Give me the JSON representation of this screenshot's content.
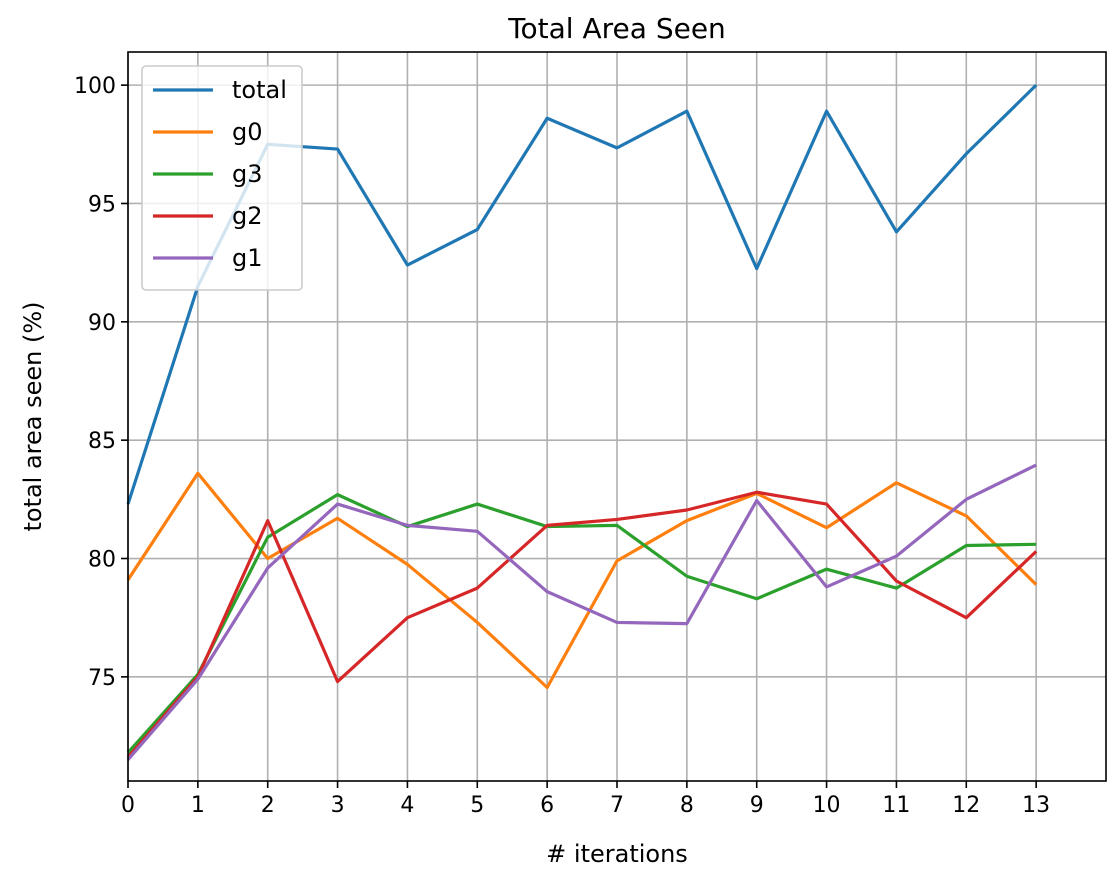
{
  "chart_data": {
    "type": "line",
    "title": "Total Area Seen",
    "xlabel": "# iterations",
    "ylabel": "total area seen (%)",
    "x": [
      0,
      1,
      2,
      3,
      4,
      5,
      6,
      7,
      8,
      9,
      10,
      11,
      12,
      13
    ],
    "xlim": [
      0,
      14
    ],
    "ylim": [
      70.6,
      101.4
    ],
    "xticks": [
      "0",
      "1",
      "2",
      "3",
      "4",
      "5",
      "6",
      "7",
      "8",
      "9",
      "10",
      "11",
      "12",
      "13"
    ],
    "yticks": [
      "75",
      "80",
      "85",
      "90",
      "95",
      "100"
    ],
    "grid": true,
    "legend_location": "upper left",
    "series": [
      {
        "name": "total",
        "color": "#1f77b4",
        "values": [
          82.3,
          91.5,
          97.5,
          97.3,
          92.4,
          93.9,
          98.6,
          97.35,
          98.9,
          92.25,
          98.9,
          93.8,
          97.1,
          100.0
        ]
      },
      {
        "name": "g0",
        "color": "#ff7f0e",
        "values": [
          79.1,
          83.6,
          80.0,
          81.7,
          79.75,
          77.3,
          74.55,
          79.9,
          81.6,
          82.75,
          81.3,
          83.2,
          81.8,
          78.9
        ]
      },
      {
        "name": "g3",
        "color": "#2ca02c",
        "values": [
          71.8,
          75.1,
          80.9,
          82.7,
          81.35,
          82.3,
          81.35,
          81.4,
          79.25,
          78.3,
          79.55,
          78.75,
          80.55,
          80.6
        ]
      },
      {
        "name": "g2",
        "color": "#d62728",
        "values": [
          71.6,
          75.0,
          81.6,
          74.8,
          77.5,
          78.75,
          81.4,
          81.65,
          82.05,
          82.8,
          82.3,
          79.05,
          77.5,
          80.3
        ]
      },
      {
        "name": "g1",
        "color": "#9467bd",
        "values": [
          71.5,
          74.9,
          79.6,
          82.3,
          81.4,
          81.15,
          78.6,
          77.3,
          77.25,
          82.45,
          78.8,
          80.1,
          82.5,
          83.95
        ]
      }
    ]
  }
}
